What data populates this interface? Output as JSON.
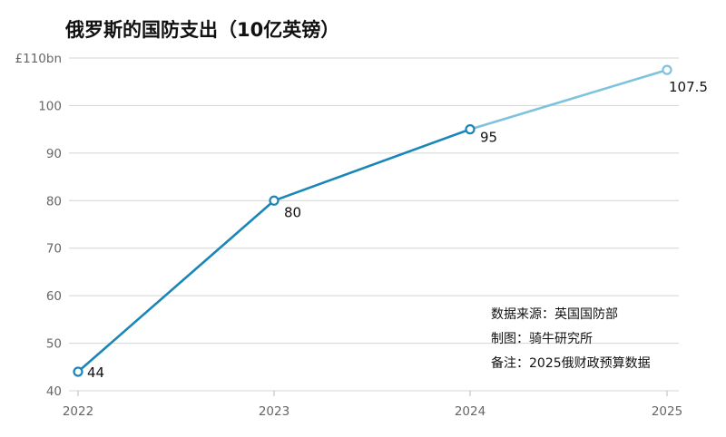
{
  "chart_data": {
    "type": "line",
    "title": "俄罗斯的国防支出（10亿英镑）",
    "x": [
      "2022",
      "2023",
      "2024",
      "2025"
    ],
    "series": [
      {
        "values": [
          44,
          80,
          95,
          107.5
        ]
      }
    ],
    "data_labels": [
      "44",
      "80",
      "95",
      "107.5"
    ],
    "y_ticks": [
      {
        "value": 40,
        "label": "40"
      },
      {
        "value": 50,
        "label": "50"
      },
      {
        "value": 60,
        "label": "60"
      },
      {
        "value": 70,
        "label": "70"
      },
      {
        "value": 80,
        "label": "80"
      },
      {
        "value": 90,
        "label": "90"
      },
      {
        "value": 100,
        "label": "100"
      },
      {
        "value": 110,
        "label": "£110bn"
      }
    ],
    "ylim": [
      40,
      110
    ],
    "grid": true,
    "forecast_from_index": 2,
    "colors": {
      "actual": "#1a86b8",
      "forecast": "#7ec2df"
    },
    "notes": [
      "数据来源：英国国防部",
      "制图：骑牛研究所",
      "备注：2025俄财政预算数据"
    ]
  }
}
